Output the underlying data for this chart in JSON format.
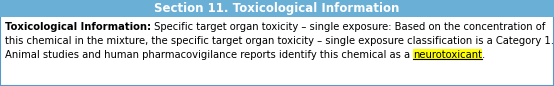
{
  "title": "Section 11. Toxicological Information",
  "header_bg": "#6aafd6",
  "header_text_color": "#ffffff",
  "body_bg": "#ffffff",
  "border_color": "#5599cc",
  "line1_bold": "Toxicological Information:",
  "line1_normal": " Specific target organ toxicity – single exposure: Based on the concentration of",
  "line2": "this chemical in the mixture, the specific target organ toxicity – single exposure classification is a Category 1.",
  "line3_pre": "Animal studies and human pharmacovigilance reports identify this chemical as a ",
  "line3_highlight": "neurotoxicant",
  "line3_post": ".",
  "highlight_color": "#ffff00",
  "text_color": "#000000",
  "font_size": 7.2,
  "title_font_size": 8.5,
  "fig_width": 5.54,
  "fig_height": 0.86,
  "dpi": 100
}
